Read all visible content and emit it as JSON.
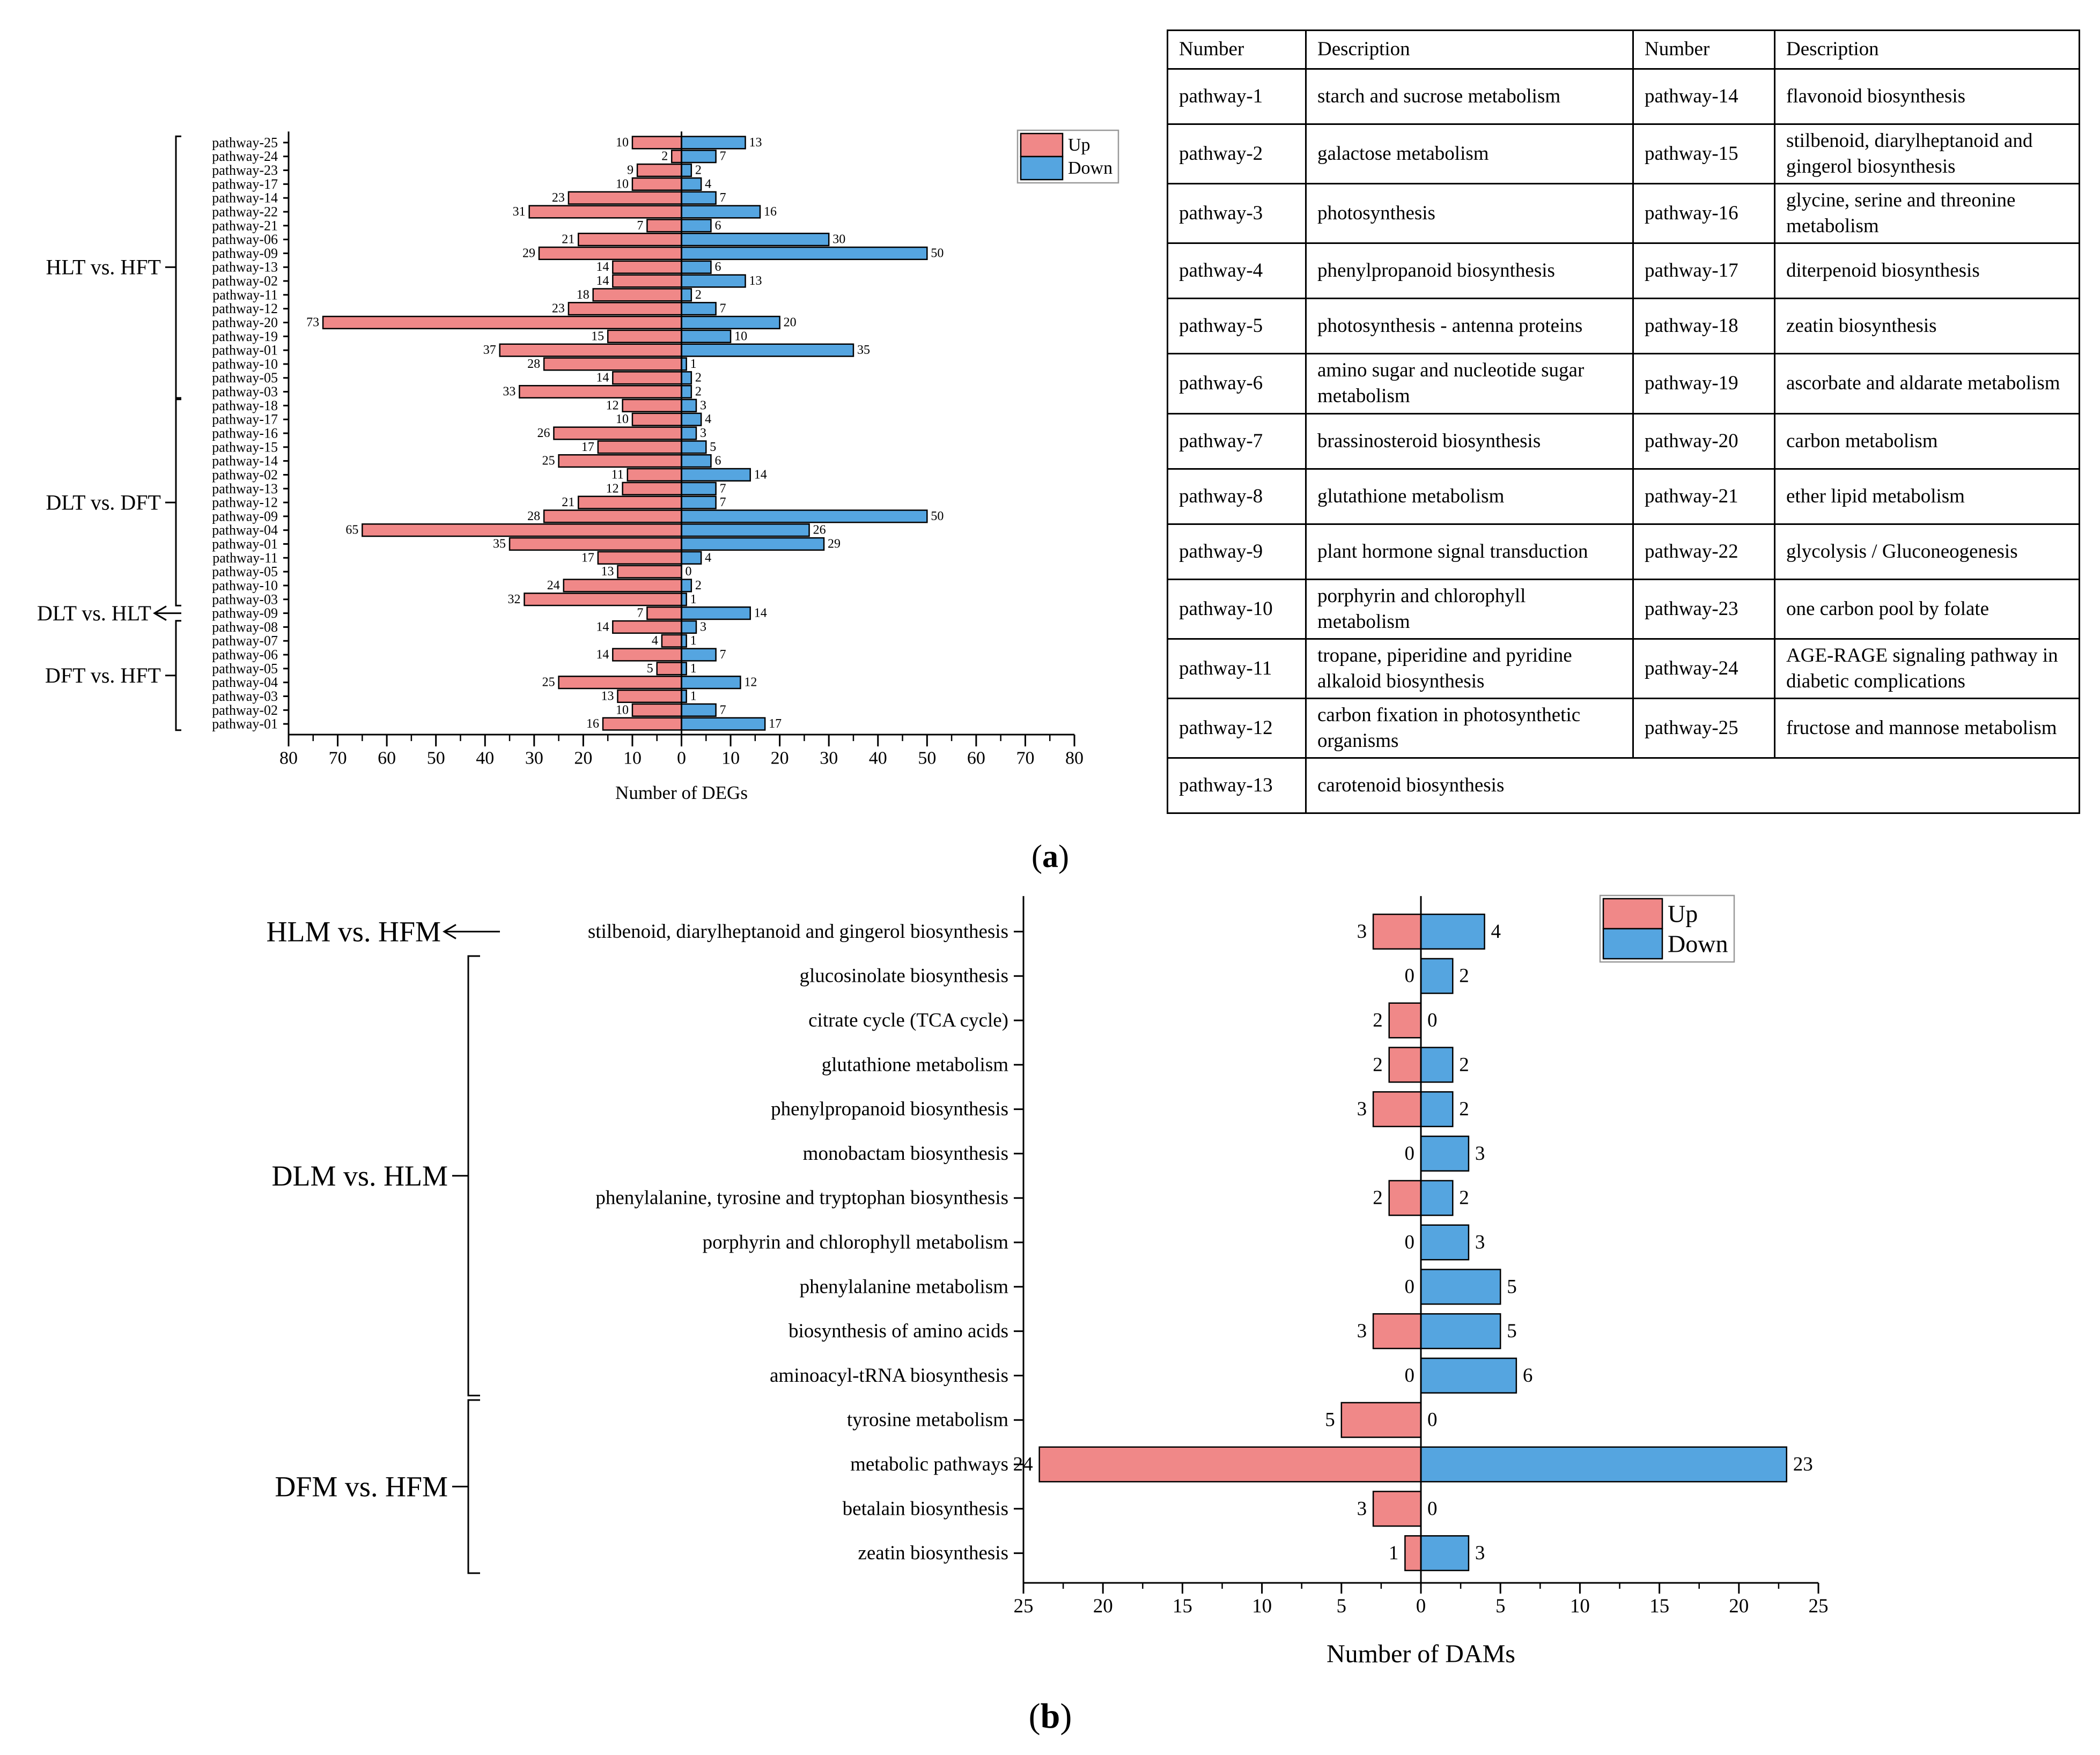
{
  "chart_data": [
    {
      "id": "a",
      "type": "bar",
      "orientation": "horizontal-diverging",
      "panel_label": "a",
      "xlabel": "Number of DEGs",
      "xlim": [
        -80,
        80
      ],
      "xticks": [
        "80",
        "70",
        "60",
        "50",
        "40",
        "30",
        "20",
        "10",
        "0",
        "10",
        "20",
        "30",
        "40",
        "50",
        "60",
        "70",
        "80"
      ],
      "legend": {
        "position": "top-right",
        "labels": [
          "Up",
          "Down"
        ]
      },
      "colors": {
        "up": "#f08888",
        "down": "#55a5e0"
      },
      "groups": [
        {
          "label": "HLT vs. HFT",
          "bracket": "dash",
          "rows": [
            {
              "pathway": "pathway-25",
              "up": 10,
              "down": 13
            },
            {
              "pathway": "pathway-24",
              "up": 2,
              "down": 7
            },
            {
              "pathway": "pathway-23",
              "up": 9,
              "down": 2
            },
            {
              "pathway": "pathway-17",
              "up": 10,
              "down": 4
            },
            {
              "pathway": "pathway-14",
              "up": 23,
              "down": 7
            },
            {
              "pathway": "pathway-22",
              "up": 31,
              "down": 16
            },
            {
              "pathway": "pathway-21",
              "up": 7,
              "down": 6
            },
            {
              "pathway": "pathway-06",
              "up": 21,
              "down": 30
            },
            {
              "pathway": "pathway-09",
              "up": 29,
              "down": 50
            },
            {
              "pathway": "pathway-13",
              "up": 14,
              "down": 6
            },
            {
              "pathway": "pathway-02",
              "up": 14,
              "down": 13
            },
            {
              "pathway": "pathway-11",
              "up": 18,
              "down": 2
            },
            {
              "pathway": "pathway-12",
              "up": 23,
              "down": 7
            },
            {
              "pathway": "pathway-20",
              "up": 73,
              "down": 20
            },
            {
              "pathway": "pathway-19",
              "up": 15,
              "down": 10
            },
            {
              "pathway": "pathway-01",
              "up": 37,
              "down": 35
            },
            {
              "pathway": "pathway-10",
              "up": 28,
              "down": 1
            },
            {
              "pathway": "pathway-05",
              "up": 14,
              "down": 2
            },
            {
              "pathway": "pathway-03",
              "up": 33,
              "down": 2
            }
          ]
        },
        {
          "label": "DLT vs. DFT",
          "bracket": "dash",
          "rows": [
            {
              "pathway": "pathway-18",
              "up": 12,
              "down": 3
            },
            {
              "pathway": "pathway-17",
              "up": 10,
              "down": 4
            },
            {
              "pathway": "pathway-16",
              "up": 26,
              "down": 3
            },
            {
              "pathway": "pathway-15",
              "up": 17,
              "down": 5
            },
            {
              "pathway": "pathway-14",
              "up": 25,
              "down": 6
            },
            {
              "pathway": "pathway-02",
              "up": 11,
              "down": 14
            },
            {
              "pathway": "pathway-13",
              "up": 12,
              "down": 7
            },
            {
              "pathway": "pathway-12",
              "up": 21,
              "down": 7
            },
            {
              "pathway": "pathway-09",
              "up": 28,
              "down": 50
            },
            {
              "pathway": "pathway-04",
              "up": 65,
              "down": 26
            },
            {
              "pathway": "pathway-01",
              "up": 35,
              "down": 29
            },
            {
              "pathway": "pathway-11",
              "up": 17,
              "down": 4
            },
            {
              "pathway": "pathway-05",
              "up": 13,
              "down": 0
            },
            {
              "pathway": "pathway-10",
              "up": 24,
              "down": 2
            },
            {
              "pathway": "pathway-03",
              "up": 32,
              "down": 1
            }
          ]
        },
        {
          "label": "DLT vs. HLT",
          "bracket": "arrow",
          "rows": [
            {
              "pathway": "pathway-09",
              "up": 7,
              "down": 14
            }
          ]
        },
        {
          "label": "DFT vs. HFT",
          "bracket": "dash",
          "rows": [
            {
              "pathway": "pathway-08",
              "up": 14,
              "down": 3
            },
            {
              "pathway": "pathway-07",
              "up": 4,
              "down": 1
            },
            {
              "pathway": "pathway-06",
              "up": 14,
              "down": 7
            },
            {
              "pathway": "pathway-05",
              "up": 5,
              "down": 1
            },
            {
              "pathway": "pathway-04",
              "up": 25,
              "down": 12
            },
            {
              "pathway": "pathway-03",
              "up": 13,
              "down": 1
            },
            {
              "pathway": "pathway-02",
              "up": 10,
              "down": 7
            },
            {
              "pathway": "pathway-01",
              "up": 16,
              "down": 17
            }
          ]
        }
      ]
    },
    {
      "id": "b",
      "type": "bar",
      "orientation": "horizontal-diverging",
      "panel_label": "b",
      "xlabel": "Number of DAMs",
      "xlim": [
        -25,
        25
      ],
      "xticks": [
        "25",
        "20",
        "15",
        "10",
        "5",
        "0",
        "5",
        "10",
        "15",
        "20",
        "25"
      ],
      "legend": {
        "position": "top-right",
        "labels": [
          "Up",
          "Down"
        ]
      },
      "colors": {
        "up": "#f08888",
        "down": "#55a5e0"
      },
      "groups": [
        {
          "label": "HLM vs. HFM",
          "bracket": "arrow",
          "rows": [
            {
              "pathway": "stilbenoid, diarylheptanoid and gingerol biosynthesis",
              "up": 3,
              "down": 4
            }
          ]
        },
        {
          "label": "DLM vs. HLM",
          "bracket": "dash",
          "rows": [
            {
              "pathway": "glucosinolate biosynthesis",
              "up": 0,
              "down": 2
            },
            {
              "pathway": "citrate cycle (TCA cycle)",
              "up": 2,
              "down": 0
            },
            {
              "pathway": "glutathione metabolism",
              "up": 2,
              "down": 2
            },
            {
              "pathway": "phenylpropanoid biosynthesis",
              "up": 3,
              "down": 2
            },
            {
              "pathway": "monobactam biosynthesis",
              "up": 0,
              "down": 3
            },
            {
              "pathway": "phenylalanine, tyrosine and tryptophan biosynthesis",
              "up": 2,
              "down": 2
            },
            {
              "pathway": "porphyrin and chlorophyll metabolism",
              "up": 0,
              "down": 3
            },
            {
              "pathway": "phenylalanine metabolism",
              "up": 0,
              "down": 5
            },
            {
              "pathway": "biosynthesis of amino acids",
              "up": 3,
              "down": 5
            },
            {
              "pathway": "aminoacyl-tRNA biosynthesis",
              "up": 0,
              "down": 6
            }
          ]
        },
        {
          "label": "DFM vs. HFM",
          "bracket": "dash",
          "rows": [
            {
              "pathway": "tyrosine metabolism",
              "up": 5,
              "down": 0
            },
            {
              "pathway": "metabolic pathways",
              "up": 24,
              "down": 23
            },
            {
              "pathway": "betalain biosynthesis",
              "up": 3,
              "down": 0
            },
            {
              "pathway": "zeatin biosynthesis",
              "up": 1,
              "down": 3
            }
          ]
        }
      ]
    }
  ],
  "table": {
    "headers": [
      "Number",
      "Description",
      "Number",
      "Description"
    ],
    "rows": [
      [
        "pathway-1",
        "starch and sucrose metabolism",
        "pathway-14",
        "flavonoid biosynthesis"
      ],
      [
        "pathway-2",
        "galactose metabolism",
        "pathway-15",
        "stilbenoid, diarylheptanoid and gingerol biosynthesis"
      ],
      [
        "pathway-3",
        "photosynthesis",
        "pathway-16",
        "glycine, serine and threonine metabolism"
      ],
      [
        "pathway-4",
        "phenylpropanoid biosynthesis",
        "pathway-17",
        "diterpenoid biosynthesis"
      ],
      [
        "pathway-5",
        "photosynthesis - antenna proteins",
        "pathway-18",
        "zeatin biosynthesis"
      ],
      [
        "pathway-6",
        "amino sugar and nucleotide sugar metabolism",
        "pathway-19",
        "ascorbate and aldarate metabolism"
      ],
      [
        "pathway-7",
        "brassinosteroid biosynthesis",
        "pathway-20",
        "carbon metabolism"
      ],
      [
        "pathway-8",
        "glutathione metabolism",
        "pathway-21",
        "ether lipid metabolism"
      ],
      [
        "pathway-9",
        "plant hormone signal transduction",
        "pathway-22",
        "glycolysis / Gluconeogenesis"
      ],
      [
        "pathway-10",
        "porphyrin and chlorophyll metabolism",
        "pathway-23",
        "one carbon pool by folate"
      ],
      [
        "pathway-11",
        "tropane, piperidine and pyridine alkaloid biosynthesis",
        "pathway-24",
        "AGE-RAGE signaling pathway in diabetic complications"
      ],
      [
        "pathway-12",
        "carbon fixation in photosynthetic organisms",
        "pathway-25",
        "fructose and mannose metabolism"
      ],
      [
        "pathway-13",
        "carotenoid biosynthesis",
        "",
        ""
      ]
    ]
  }
}
